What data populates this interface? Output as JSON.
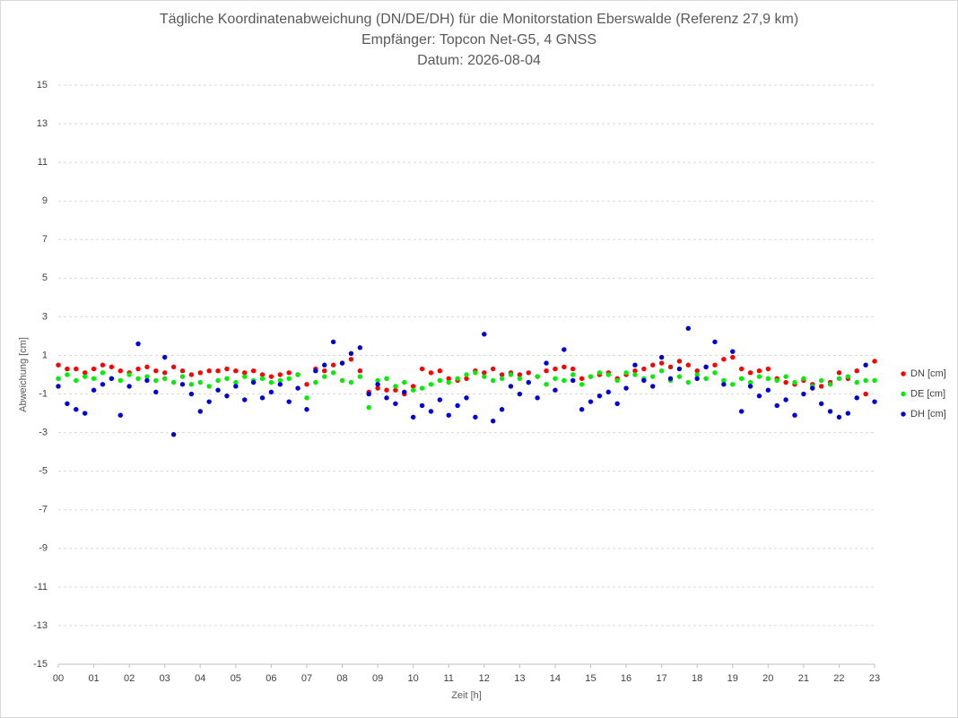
{
  "chart_data": {
    "type": "scatter",
    "title": "Tägliche Koordinatenabweichung (DN/DE/DH) für die Monitorstation Eberswalde (Referenz 27,9 km)",
    "subtitle": "Empfänger: Topcon Net-G5, 4 GNSS",
    "subtitle2": "Datum: 2026-08-04",
    "xlabel": "Zeit [h]",
    "ylabel": "Abweichung [cm]",
    "xlim": [
      0,
      23
    ],
    "ylim": [
      -15,
      15
    ],
    "xticks": [
      {
        "value": 0,
        "label": "00"
      },
      {
        "value": 1,
        "label": "01"
      },
      {
        "value": 2,
        "label": "02"
      },
      {
        "value": 3,
        "label": "03"
      },
      {
        "value": 4,
        "label": "04"
      },
      {
        "value": 5,
        "label": "05"
      },
      {
        "value": 6,
        "label": "06"
      },
      {
        "value": 7,
        "label": "07"
      },
      {
        "value": 8,
        "label": "08"
      },
      {
        "value": 9,
        "label": "09"
      },
      10,
      11,
      12,
      13,
      14,
      15,
      16,
      17,
      18,
      19,
      20,
      21,
      22,
      23
    ],
    "yticks": [
      -15,
      -13,
      -11,
      -9,
      -7,
      -5,
      -3,
      -1,
      1,
      3,
      5,
      7,
      9,
      11,
      13,
      15
    ],
    "grid": true,
    "legend": "right",
    "x": [
      0,
      0.25,
      0.5,
      0.75,
      1,
      1.25,
      1.5,
      1.75,
      2,
      2.25,
      2.5,
      2.75,
      3,
      3.25,
      3.5,
      3.75,
      4,
      4.25,
      4.5,
      4.75,
      5,
      5.25,
      5.5,
      5.75,
      6,
      6.25,
      6.5,
      6.75,
      7,
      7.25,
      7.5,
      7.75,
      8,
      8.25,
      8.5,
      8.75,
      9,
      9.25,
      9.5,
      9.75,
      10,
      10.25,
      10.5,
      10.75,
      11,
      11.25,
      11.5,
      11.75,
      12,
      12.25,
      12.5,
      12.75,
      13,
      13.25,
      13.5,
      13.75,
      14,
      14.25,
      14.5,
      14.75,
      15,
      15.25,
      15.5,
      15.75,
      16,
      16.25,
      16.5,
      16.75,
      17,
      17.25,
      17.5,
      17.75,
      18,
      18.25,
      18.5,
      18.75,
      19,
      19.25,
      19.5,
      19.75,
      20,
      20.25,
      20.5,
      20.75,
      21,
      21.25,
      21.5,
      21.75,
      22,
      22.25,
      22.5,
      22.75,
      23
    ],
    "series": [
      {
        "name": "DN [cm]",
        "color": "#ff0000",
        "values": [
          0.5,
          0.3,
          0.3,
          0.1,
          0.3,
          0.5,
          0.4,
          0.2,
          0.1,
          0.3,
          0.4,
          0.2,
          0.1,
          0.4,
          0.2,
          0,
          0.1,
          0.2,
          0.2,
          0.3,
          0.2,
          0.1,
          0.2,
          0,
          -0.1,
          0,
          0.1,
          0,
          -0.5,
          0.3,
          0.2,
          0.5,
          0.6,
          0.8,
          0.2,
          -0.9,
          -0.7,
          -0.8,
          -0.8,
          -1,
          -0.6,
          0.3,
          0.1,
          0.2,
          -0.2,
          -0.3,
          -0.2,
          0.2,
          0.1,
          0.3,
          0,
          0.1,
          0,
          0.1,
          -0.1,
          0.2,
          0.3,
          0.4,
          0.3,
          -0.2,
          -0.1,
          0,
          0.1,
          -0.2,
          0,
          0.2,
          0.3,
          0.5,
          0.6,
          0.4,
          0.7,
          0.5,
          0.2,
          0.4,
          0.5,
          0.8,
          0.9,
          0.3,
          0.1,
          0.2,
          0.3,
          -0.2,
          -0.4,
          -0.5,
          -0.3,
          -0.5,
          -0.6,
          -0.4,
          0.1,
          -0.2,
          0.2,
          -1,
          0.7
        ]
      },
      {
        "name": "DE [cm]",
        "color": "#00ee00",
        "values": [
          -0.2,
          0,
          -0.3,
          -0.1,
          -0.2,
          0.1,
          -0.2,
          -0.3,
          0,
          -0.2,
          -0.1,
          -0.3,
          -0.2,
          -0.4,
          -0.1,
          -0.5,
          -0.4,
          -0.6,
          -0.3,
          -0.2,
          -0.4,
          -0.1,
          -0.3,
          -0.2,
          -0.4,
          -0.3,
          -0.2,
          0,
          -1.2,
          -0.4,
          -0.1,
          0.1,
          -0.3,
          -0.4,
          -0.1,
          -1.7,
          -0.3,
          -0.2,
          -0.6,
          -0.4,
          -0.8,
          -0.7,
          -0.5,
          -0.3,
          -0.4,
          -0.2,
          0,
          0.1,
          -0.1,
          -0.3,
          -0.2,
          0,
          -0.2,
          -0.4,
          -0.1,
          -0.5,
          -0.2,
          -0.3,
          0,
          -0.5,
          -0.1,
          0.1,
          0,
          -0.3,
          0.1,
          0,
          -0.2,
          -0.1,
          0.2,
          -0.3,
          -0.1,
          -0.4,
          0,
          -0.2,
          0.1,
          -0.3,
          -0.5,
          -0.2,
          -0.4,
          -0.1,
          -0.2,
          -0.3,
          -0.1,
          -0.4,
          -0.2,
          -0.6,
          -0.3,
          -0.5,
          -0.2,
          -0.1,
          -0.4,
          -0.3,
          -0.3
        ]
      },
      {
        "name": "DH [cm]",
        "color": "#0000dd",
        "values": [
          -0.6,
          -1.5,
          -1.8,
          -2,
          -0.8,
          -0.5,
          -0.2,
          -2.1,
          -0.6,
          1.6,
          -0.3,
          -0.9,
          0.9,
          -3.1,
          -0.5,
          -1,
          -1.9,
          -1.4,
          -0.8,
          -1.1,
          -0.6,
          -1.3,
          -0.4,
          -1.2,
          -0.9,
          -0.5,
          -1.4,
          -0.7,
          -1.8,
          0.2,
          0.5,
          1.7,
          0.6,
          1.1,
          1.4,
          -1,
          -0.5,
          -1.2,
          -1.5,
          -0.9,
          -2.2,
          -1.6,
          -1.9,
          -1.3,
          -2.1,
          -1.6,
          -1.2,
          -2.2,
          2.1,
          -2.4,
          -1.8,
          -0.6,
          -1,
          -0.4,
          -1.2,
          0.6,
          -0.8,
          1.3,
          -0.3,
          -1.8,
          -1.4,
          -1.1,
          -0.9,
          -1.5,
          -0.7,
          0.5,
          -0.3,
          -0.6,
          0.9,
          -0.2,
          0.3,
          2.4,
          -0.2,
          0.4,
          1.7,
          -0.5,
          1.2,
          -1.9,
          -0.6,
          -1.1,
          -0.8,
          -1.6,
          -1.3,
          -2.1,
          -1,
          -0.7,
          -1.5,
          -1.9,
          -2.2,
          -2,
          -1.2,
          0.5,
          -1.4
        ]
      }
    ]
  }
}
